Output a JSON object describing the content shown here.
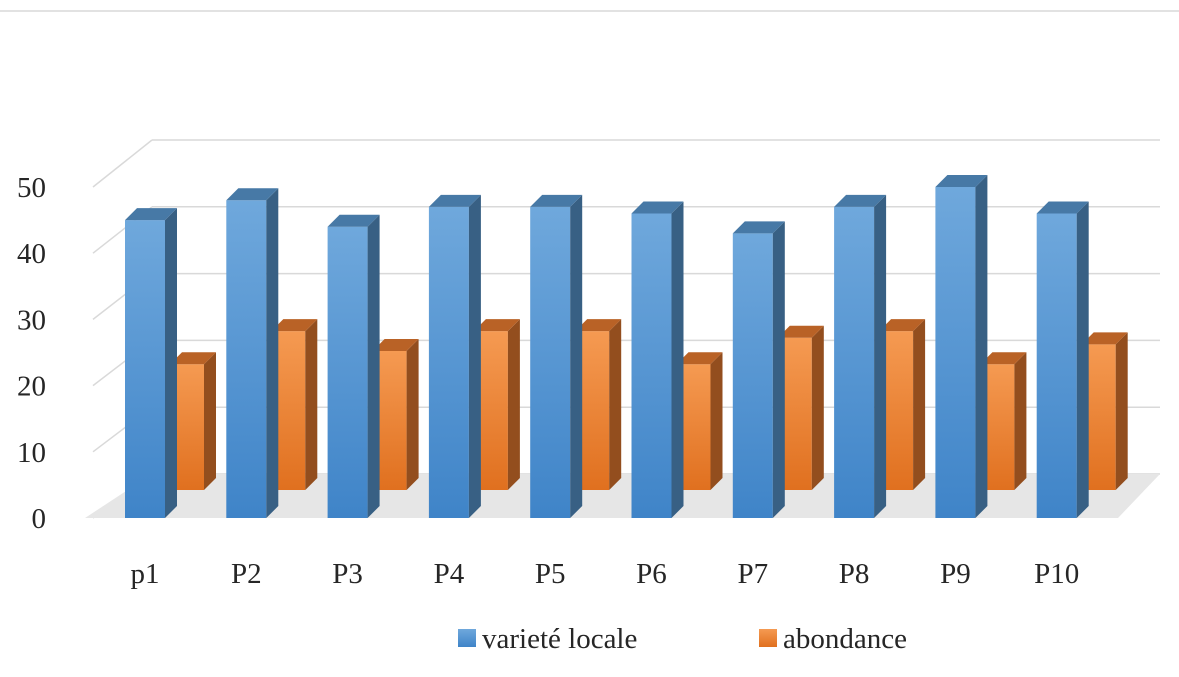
{
  "chart_data": {
    "type": "bar",
    "style": "3d-clustered-column",
    "categories": [
      "p1",
      "P2",
      "P3",
      "P4",
      "P5",
      "P6",
      "P7",
      "P8",
      "P9",
      "P10"
    ],
    "series": [
      {
        "name": "varieté locale",
        "color": "#5b9bd5",
        "values": [
          45,
          48,
          44,
          47,
          47,
          46,
          43,
          47,
          50,
          46
        ]
      },
      {
        "name": "abondance",
        "color": "#ed7d31",
        "values": [
          19,
          24,
          21,
          24,
          24,
          19,
          23,
          24,
          19,
          22
        ]
      }
    ],
    "yticks": [
      0,
      10,
      20,
      30,
      40,
      50
    ],
    "ylim": [
      0,
      50
    ],
    "grid": true,
    "legend_position": "bottom"
  }
}
